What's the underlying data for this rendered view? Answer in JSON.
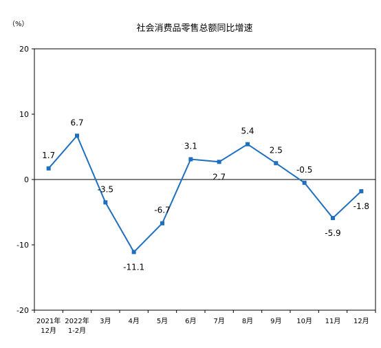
{
  "chart_data": {
    "type": "line",
    "title": "社会消费品零售总额同比增速",
    "unit_label": "（%）",
    "ylim": [
      -20,
      20
    ],
    "yticks": [
      "20",
      "10",
      "0",
      "-10",
      "-20"
    ],
    "ytick_values": [
      20,
      10,
      0,
      -10,
      -20
    ],
    "grid": false,
    "categories": [
      [
        "2021年",
        "12月"
      ],
      [
        "2022年",
        "1-2月"
      ],
      [
        "3月"
      ],
      [
        "4月"
      ],
      [
        "5月"
      ],
      [
        "6月"
      ],
      [
        "7月"
      ],
      [
        "8月"
      ],
      [
        "9月"
      ],
      [
        "10月"
      ],
      [
        "11月"
      ],
      [
        "12月"
      ]
    ],
    "series": [
      {
        "values": [
          1.7,
          6.7,
          -3.5,
          -11.1,
          -6.7,
          3.1,
          2.7,
          5.4,
          2.5,
          -0.5,
          -5.9,
          -1.8
        ],
        "labels": [
          "1.7",
          "6.7",
          "-3.5",
          "-11.1",
          "-6.7",
          "3.1",
          "2.7",
          "5.4",
          "2.5",
          "-0.5",
          "-5.9",
          "-1.8"
        ],
        "color": "#1f6fbf"
      }
    ]
  }
}
